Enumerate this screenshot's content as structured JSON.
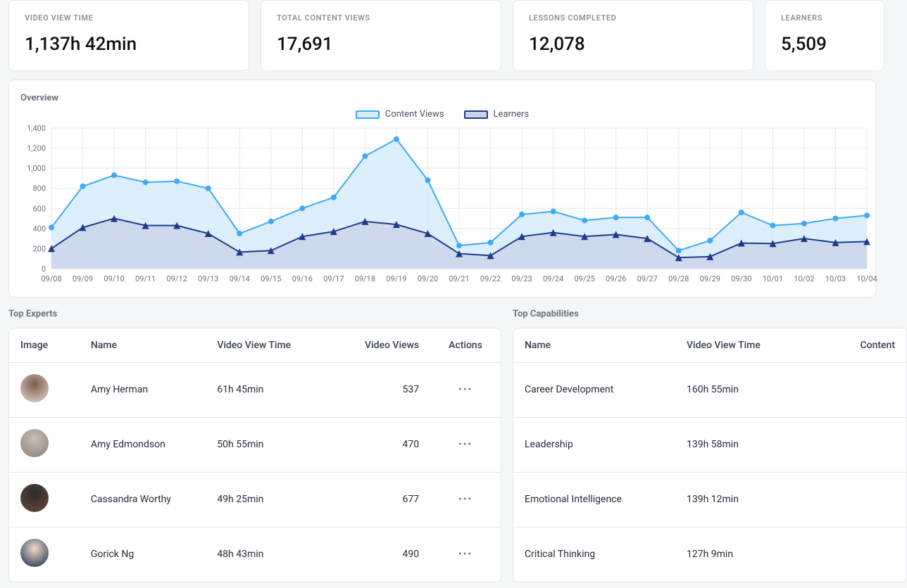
{
  "stats": [
    {
      "label": "VIDEO VIEW TIME",
      "value": "1,137h 42min"
    },
    {
      "label": "TOTAL CONTENT VIEWS",
      "value": "17,691"
    },
    {
      "label": "LESSONS COMPLETED",
      "value": "12,078"
    },
    {
      "label": "LEARNERS",
      "value": "5,509"
    }
  ],
  "overview": {
    "title": "Overview",
    "type": "line-area",
    "legend": [
      {
        "label": "Content Views",
        "stroke": "#3fa9f5",
        "fill": "#d7ecfb",
        "marker": "circle"
      },
      {
        "label": "Learners",
        "stroke": "#1e3a8a",
        "fill": "#c9d2e8",
        "marker": "triangle"
      }
    ],
    "x_labels": [
      "09/08",
      "09/09",
      "09/10",
      "09/11",
      "09/12",
      "09/13",
      "09/14",
      "09/15",
      "09/16",
      "09/17",
      "09/18",
      "09/19",
      "09/20",
      "09/21",
      "09/22",
      "09/23",
      "09/24",
      "09/25",
      "09/26",
      "09/27",
      "09/28",
      "09/29",
      "09/30",
      "10/01",
      "10/02",
      "10/03",
      "10/04"
    ],
    "ylim": [
      0,
      1400
    ],
    "ytick_step": 200,
    "grid_color": "#e5e7eb",
    "background_color": "#ffffff",
    "axis_font_size": 11,
    "line_width": 2,
    "marker_size": 4,
    "series": {
      "content_views": [
        410,
        820,
        930,
        860,
        870,
        800,
        350,
        470,
        600,
        710,
        1120,
        1290,
        880,
        230,
        260,
        540,
        570,
        480,
        510,
        510,
        180,
        280,
        560,
        430,
        450,
        500,
        530
      ],
      "learners": [
        200,
        410,
        500,
        430,
        430,
        350,
        165,
        180,
        320,
        370,
        470,
        440,
        350,
        150,
        130,
        320,
        360,
        320,
        340,
        300,
        110,
        120,
        255,
        250,
        300,
        260,
        270
      ]
    }
  },
  "top_experts": {
    "title": "Top Experts",
    "columns": [
      "Image",
      "Name",
      "Video View Time",
      "Video Views",
      "Actions"
    ],
    "rows": [
      {
        "name": "Amy Herman",
        "time": "61h 45min",
        "views": "537",
        "avatar_gradient": [
          "#7a5c4d",
          "#e8d9cf"
        ]
      },
      {
        "name": "Amy Edmondson",
        "time": "50h 55min",
        "views": "470",
        "avatar_gradient": [
          "#c9bfb6",
          "#8d8076"
        ]
      },
      {
        "name": "Cassandra Worthy",
        "time": "49h 25min",
        "views": "677",
        "avatar_gradient": [
          "#2b2b2b",
          "#6b4a3a"
        ]
      },
      {
        "name": "Gorick Ng",
        "time": "48h 43min",
        "views": "490",
        "avatar_gradient": [
          "#f2d9c8",
          "#0f2a4a"
        ]
      }
    ]
  },
  "top_capabilities": {
    "title": "Top Capabilities",
    "columns": [
      "Name",
      "Video View Time",
      "Content"
    ],
    "rows": [
      {
        "name": "Career Development",
        "time": "160h 55min"
      },
      {
        "name": "Leadership",
        "time": "139h 58min"
      },
      {
        "name": "Emotional Intelligence",
        "time": "139h 12min"
      },
      {
        "name": "Critical Thinking",
        "time": "127h 9min"
      }
    ]
  }
}
